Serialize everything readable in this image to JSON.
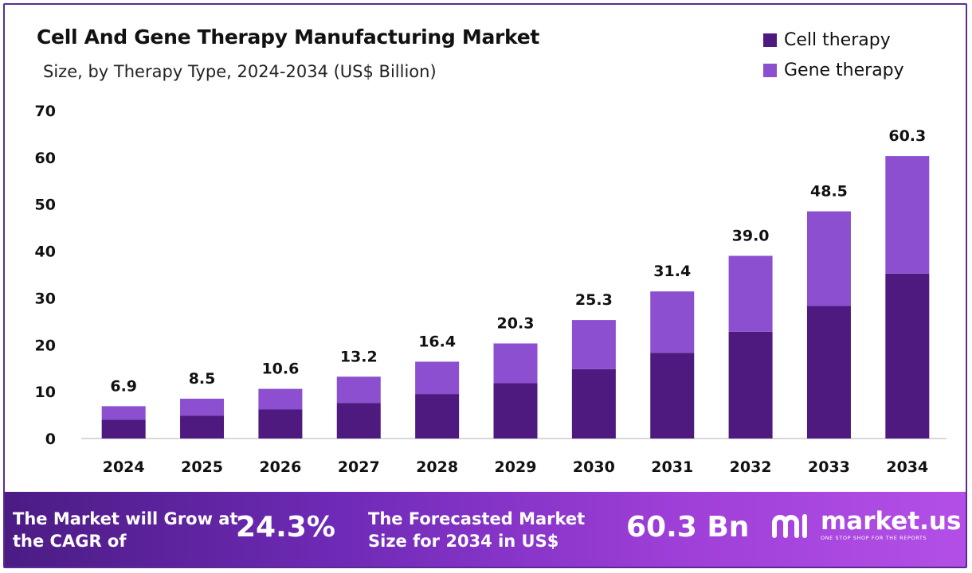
{
  "colors": {
    "cell": "#4e1a7f",
    "gene": "#8b4fcf",
    "axis": "#cccccc",
    "text": "#111111"
  },
  "chart_data": {
    "type": "bar",
    "stacked": true,
    "title": "Cell And Gene Therapy Manufacturing Market",
    "subtitle": "Size, by Therapy Type, 2024-2034 (US$ Billion)",
    "categories": [
      "2024",
      "2025",
      "2026",
      "2027",
      "2028",
      "2029",
      "2030",
      "2031",
      "2032",
      "2033",
      "2034"
    ],
    "series": [
      {
        "name": "Cell therapy",
        "values": [
          4.0,
          4.9,
          6.2,
          7.6,
          9.5,
          11.8,
          14.8,
          18.3,
          22.8,
          28.3,
          35.2
        ]
      },
      {
        "name": "Gene therapy",
        "values": [
          2.9,
          3.6,
          4.4,
          5.6,
          6.9,
          8.5,
          10.5,
          13.1,
          16.2,
          20.2,
          25.1
        ]
      }
    ],
    "totals": [
      6.9,
      8.5,
      10.6,
      13.2,
      16.4,
      20.3,
      25.3,
      31.4,
      39.0,
      48.5,
      60.3
    ],
    "total_labels": [
      "6.9",
      "8.5",
      "10.6",
      "13.2",
      "16.4",
      "20.3",
      "25.3",
      "31.4",
      "39.0",
      "48.5",
      "60.3"
    ],
    "ylim": [
      0,
      70
    ],
    "yticks": [
      0,
      10,
      20,
      30,
      40,
      50,
      60,
      70
    ],
    "grid": false,
    "legend_position": "top-right",
    "xlabel": "",
    "ylabel": ""
  },
  "legend": {
    "items": [
      {
        "label": "Cell therapy"
      },
      {
        "label": "Gene therapy"
      }
    ]
  },
  "footer": {
    "cagr_text": "The Market will Grow at the CAGR of",
    "cagr_value": "24.3%",
    "forecast_text": "The Forecasted Market Size for 2034 in US$",
    "forecast_value": "60.3 Bn",
    "brand_name": "market.us",
    "brand_tagline": "ONE STOP SHOP FOR THE REPORTS",
    "brand_icon": "market-us-logo-icon"
  }
}
